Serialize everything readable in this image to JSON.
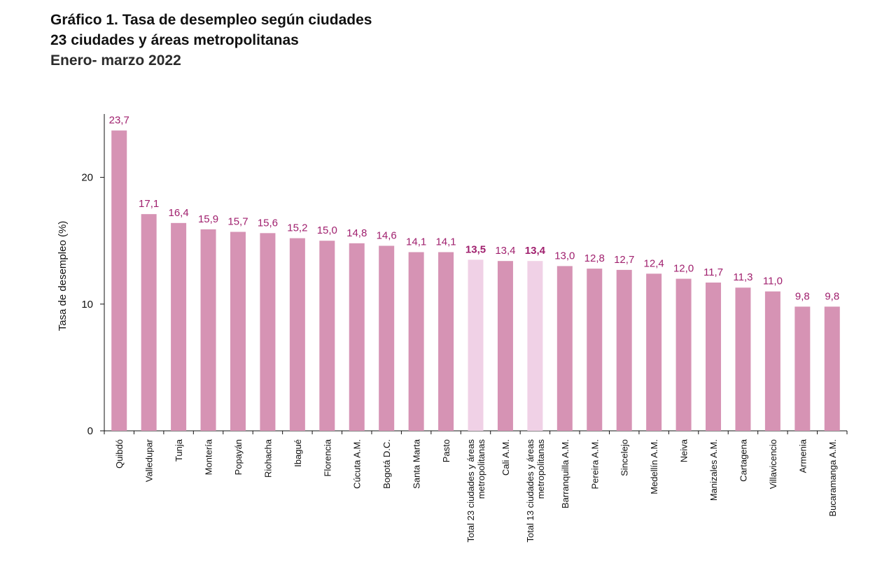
{
  "header": {
    "title": "Gráfico 1. Tasa de desempleo según ciudades",
    "subtitle": "23 ciudades y áreas metropolitanas",
    "period": "Enero- marzo 2022"
  },
  "colors": {
    "bar": "#d693b4",
    "bar_highlight": "#f0d1e6",
    "data_label": "#a0206e",
    "axis": "#111111"
  },
  "chart_data": {
    "type": "bar",
    "title": "Gráfico 1. Tasa de desempleo según ciudades",
    "subtitle": "23 ciudades y áreas metropolitanas — Enero- marzo 2022",
    "xlabel": "",
    "ylabel": "Tasa de desempleo (%)",
    "ylim": [
      0,
      25
    ],
    "yticks": [
      0,
      10,
      20
    ],
    "grid": false,
    "legend": "none",
    "categories": [
      "Quibdó",
      "Valledupar",
      "Tunja",
      "Montería",
      "Popayán",
      "Riohacha",
      "Ibagué",
      "Florencia",
      "Cúcuta A.M.",
      "Bogotá D.C.",
      "Santa Marta",
      "Pasto",
      "Total 23 ciudades y áreas metropolitanas",
      "Cali A.M.",
      "Total 13 ciudades y áreas metropolitanas",
      "Barranquilla A.M.",
      "Pereira A.M.",
      "Sincelejo",
      "Medellín A.M.",
      "Neiva",
      "Manizales A.M.",
      "Cartagena",
      "Villavicencio",
      "Armenia",
      "Bucaramanga A.M."
    ],
    "category_lines": [
      [
        "Quibdó"
      ],
      [
        "Valledupar"
      ],
      [
        "Tunja"
      ],
      [
        "Montería"
      ],
      [
        "Popayán"
      ],
      [
        "Riohacha"
      ],
      [
        "Ibagué"
      ],
      [
        "Florencia"
      ],
      [
        "Cúcuta A.M."
      ],
      [
        "Bogotá D.C."
      ],
      [
        "Santa Marta"
      ],
      [
        "Pasto"
      ],
      [
        "Total 23 ciudades y áreas",
        "metropolitanas"
      ],
      [
        "Cali A.M."
      ],
      [
        "Total 13 ciudades y áreas",
        "metropolitanas"
      ],
      [
        "Barranquilla A.M."
      ],
      [
        "Pereira A.M."
      ],
      [
        "Sincelejo"
      ],
      [
        "Medellín A.M."
      ],
      [
        "Neiva"
      ],
      [
        "Manizales A.M."
      ],
      [
        "Cartagena"
      ],
      [
        "Villavicencio"
      ],
      [
        "Armenia"
      ],
      [
        "Bucaramanga A.M."
      ]
    ],
    "values": [
      23.7,
      17.1,
      16.4,
      15.9,
      15.7,
      15.6,
      15.2,
      15.0,
      14.8,
      14.6,
      14.1,
      14.1,
      13.5,
      13.4,
      13.4,
      13.0,
      12.8,
      12.7,
      12.4,
      12.0,
      11.7,
      11.3,
      11.0,
      9.8,
      9.8
    ],
    "value_labels": [
      "23,7",
      "17,1",
      "16,4",
      "15,9",
      "15,7",
      "15,6",
      "15,2",
      "15,0",
      "14,8",
      "14,6",
      "14,1",
      "14,1",
      "13,5",
      "13,4",
      "13,4",
      "13,0",
      "12,8",
      "12,7",
      "12,4",
      "12,0",
      "11,7",
      "11,3",
      "11,0",
      "9,8",
      "9,8"
    ],
    "highlighted": [
      12,
      14
    ]
  }
}
